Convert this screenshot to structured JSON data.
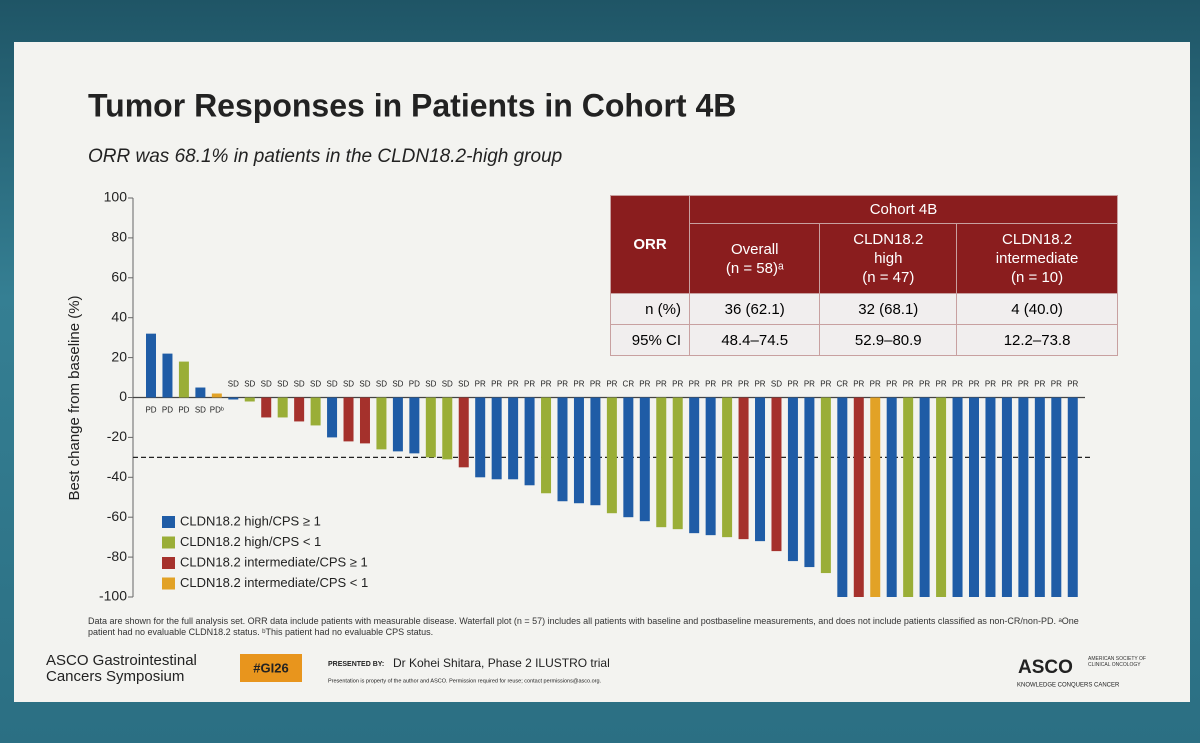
{
  "slide": {
    "title": "Tumor Responses in Patients in Cohort 4B",
    "subtitle": "ORR was 68.1% in patients in the CLDN18.2-high group",
    "footnote": "Data are shown for the full analysis set. ORR data include patients with measurable disease. Waterfall plot (n = 57) includes all patients with baseline and postbaseline measurements, and does not include patients classified as non-CR/non-PD. ᵃOne patient had no evaluable CLDN18.2 status. ᵇThis patient had no evaluable CPS status.",
    "meeting_line1": "ASCO Gastrointestinal",
    "meeting_line2": "Cancers Symposium",
    "hashtag": "#GI26",
    "presented_by": "PRESENTED BY:",
    "presenter": "Dr Kohei Shitara, Phase 2 ILUSTRO trial",
    "property_note": "Presentation is property of the author and ASCO. Permission required for reuse; contact permissions@asco.org.",
    "logo": "ASCO",
    "logo_sub": "AMERICAN SOCIETY OF CLINICAL ONCOLOGY",
    "tagline": "KNOWLEDGE CONQUERS CANCER"
  },
  "table": {
    "corner": "ORR",
    "group_header": "Cohort 4B",
    "columns": [
      [
        "Overall",
        "(n = 58)ᵃ"
      ],
      [
        "CLDN18.2",
        "high",
        "(n = 47)"
      ],
      [
        "CLDN18.2",
        "intermediate",
        "(n = 10)"
      ]
    ],
    "rows": [
      [
        "n (%)",
        "36 (62.1)",
        "32 (68.1)",
        "4 (40.0)"
      ],
      [
        "95% CI",
        "48.4–74.5",
        "52.9–80.9",
        "12.2–73.8"
      ]
    ]
  },
  "chart_data": {
    "type": "bar",
    "y_label": "Best change from baseline (%)",
    "categories": [
      "PD",
      "PD",
      "PD",
      "SD",
      "PDᵇ",
      "SD",
      "SD",
      "SD",
      "SD",
      "SD",
      "SD",
      "SD",
      "SD",
      "SD",
      "SD",
      "SD",
      "PD",
      "SD",
      "SD",
      "SD",
      "PR",
      "PR",
      "PR",
      "PR",
      "PR",
      "PR",
      "PR",
      "PR",
      "PR",
      "CR",
      "PR",
      "PR",
      "PR",
      "PR",
      "PR",
      "PR",
      "PR",
      "PR",
      "SD",
      "PR",
      "PR",
      "PR",
      "CR",
      "PR",
      "PR",
      "PR",
      "PR",
      "PR",
      "PR",
      "PR",
      "PR",
      "PR",
      "PR",
      "PR",
      "PR",
      "PR",
      "PR"
    ],
    "values": [
      32,
      22,
      18,
      5,
      2,
      -1,
      -2,
      -10,
      -10,
      -12,
      -14,
      -20,
      -22,
      -23,
      -26,
      -27,
      -28,
      -30,
      -31,
      -35,
      -40,
      -41,
      -41,
      -44,
      -48,
      -52,
      -53,
      -54,
      -58,
      -60,
      -62,
      -65,
      -66,
      -68,
      -69,
      -70,
      -71,
      -72,
      -77,
      -82,
      -85,
      -88,
      -100,
      -100,
      -100,
      -100,
      -100,
      -100,
      -100,
      -100,
      -100,
      -100,
      -100,
      -100,
      -100,
      -100,
      -100
    ],
    "bar_colors": [
      "#1f5ca6",
      "#1f5ca6",
      "#9aae37",
      "#1f5ca6",
      "#e2a226",
      "#1f5ca6",
      "#9aae37",
      "#a5312c",
      "#9aae37",
      "#a5312c",
      "#9aae37",
      "#1f5ca6",
      "#a5312c",
      "#a5312c",
      "#9aae37",
      "#1f5ca6",
      "#1f5ca6",
      "#9aae37",
      "#9aae37",
      "#a5312c",
      "#1f5ca6",
      "#1f5ca6",
      "#1f5ca6",
      "#1f5ca6",
      "#9aae37",
      "#1f5ca6",
      "#1f5ca6",
      "#1f5ca6",
      "#9aae37",
      "#1f5ca6",
      "#1f5ca6",
      "#9aae37",
      "#9aae37",
      "#1f5ca6",
      "#1f5ca6",
      "#9aae37",
      "#a5312c",
      "#1f5ca6",
      "#a5312c",
      "#1f5ca6",
      "#1f5ca6",
      "#9aae37",
      "#1f5ca6",
      "#a5312c",
      "#e2a226",
      "#1f5ca6",
      "#9aae37",
      "#1f5ca6",
      "#9aae37",
      "#1f5ca6",
      "#1f5ca6",
      "#1f5ca6",
      "#1f5ca6",
      "#1f5ca6",
      "#1f5ca6",
      "#1f5ca6",
      "#1f5ca6"
    ],
    "legend": [
      {
        "name": "CLDN18.2 high/CPS ≥ 1",
        "color": "#1f5ca6"
      },
      {
        "name": "CLDN18.2 high/CPS < 1",
        "color": "#9aae37"
      },
      {
        "name": "CLDN18.2 intermediate/CPS ≥ 1",
        "color": "#a5312c"
      },
      {
        "name": "CLDN18.2 intermediate/CPS < 1",
        "color": "#e2a226"
      }
    ],
    "reference_line": -30,
    "ylim": [
      -100,
      100
    ],
    "yticks": [
      -100,
      -80,
      -60,
      -40,
      -20,
      0,
      20,
      40,
      60,
      80,
      100
    ]
  }
}
